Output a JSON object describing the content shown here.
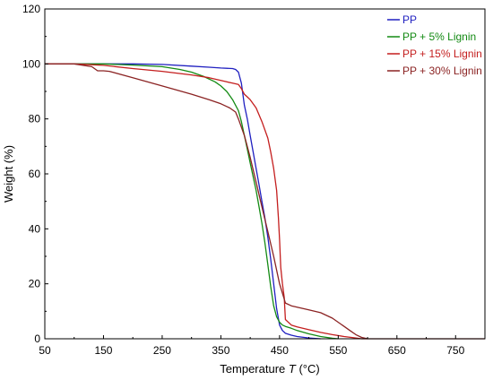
{
  "chart_data": {
    "type": "line",
    "title": "",
    "xlabel": "Temperature",
    "xlabel_symbol": "T",
    "xlabel_unit": "(°C)",
    "ylabel": "Weight  (%)",
    "xlim": [
      50,
      800
    ],
    "ylim": [
      0,
      120
    ],
    "xticks": [
      50,
      150,
      250,
      350,
      450,
      550,
      650,
      750
    ],
    "yticks": [
      0,
      20,
      40,
      60,
      80,
      100,
      120
    ],
    "grid": false,
    "legend_position": "top-right",
    "series": [
      {
        "name": "PP",
        "color": "#1f1fc0",
        "x": [
          50,
          100,
          150,
          200,
          250,
          300,
          330,
          350,
          370,
          375,
          380,
          385,
          390,
          395,
          400,
          405,
          410,
          415,
          420,
          425,
          430,
          435,
          440,
          445,
          450,
          455,
          460,
          470,
          480,
          500,
          520
        ],
        "y": [
          100,
          100,
          100,
          100,
          99.8,
          99.2,
          98.8,
          98.5,
          98.3,
          98,
          97,
          93,
          85,
          80,
          74,
          68,
          62,
          56,
          50,
          44,
          37,
          29,
          20,
          11,
          5,
          3,
          2,
          1.3,
          0.8,
          0.3,
          0
        ]
      },
      {
        "name": "PP + 5% Lignin",
        "color": "#138a13",
        "x": [
          50,
          100,
          150,
          200,
          250,
          280,
          300,
          320,
          340,
          350,
          360,
          370,
          380,
          385,
          390,
          395,
          400,
          405,
          410,
          415,
          420,
          425,
          430,
          435,
          440,
          445,
          450,
          455,
          460,
          470,
          480,
          500,
          520,
          540,
          550
        ],
        "y": [
          100,
          100,
          100,
          99.6,
          99,
          98,
          97,
          95.5,
          93.5,
          92,
          90,
          87,
          83,
          79,
          74,
          69,
          64,
          59,
          54,
          48,
          42,
          35,
          27,
          19,
          12,
          8,
          6,
          5,
          4.5,
          3.8,
          3,
          1.8,
          0.8,
          0.2,
          0
        ]
      },
      {
        "name": "PP + 15% Lignin",
        "color": "#c41e1e",
        "x": [
          50,
          100,
          150,
          200,
          250,
          300,
          330,
          350,
          360,
          370,
          380,
          385,
          390,
          395,
          400,
          410,
          420,
          430,
          435,
          440,
          445,
          448,
          450,
          452,
          455,
          458,
          460,
          470,
          480,
          500,
          520,
          540,
          560,
          580,
          590,
          600
        ],
        "y": [
          100,
          100,
          99.5,
          98.3,
          97.3,
          96,
          95,
          94,
          93.5,
          93,
          92.5,
          91,
          89,
          88,
          87,
          84,
          79,
          73,
          68,
          62,
          54,
          44,
          36,
          26,
          20,
          15,
          7,
          5,
          4.3,
          3.3,
          2.3,
          1.5,
          0.8,
          0.3,
          0,
          0
        ]
      },
      {
        "name": "PP + 30% Lignin",
        "color": "#8b2323",
        "x": [
          50,
          100,
          130,
          140,
          150,
          160,
          200,
          250,
          300,
          330,
          350,
          365,
          375,
          380,
          390,
          400,
          410,
          420,
          430,
          440,
          450,
          460,
          470,
          480,
          500,
          520,
          540,
          560,
          570,
          580,
          590,
          600,
          700,
          800
        ],
        "y": [
          100,
          100,
          99,
          97.5,
          97.5,
          97.3,
          95,
          92,
          89,
          87,
          85.5,
          84,
          82.5,
          80,
          74,
          66,
          57,
          48,
          39,
          30,
          20,
          13,
          12,
          11.5,
          10.5,
          9.5,
          7.5,
          4.5,
          3,
          1.5,
          0.5,
          0,
          0,
          0
        ]
      }
    ]
  }
}
